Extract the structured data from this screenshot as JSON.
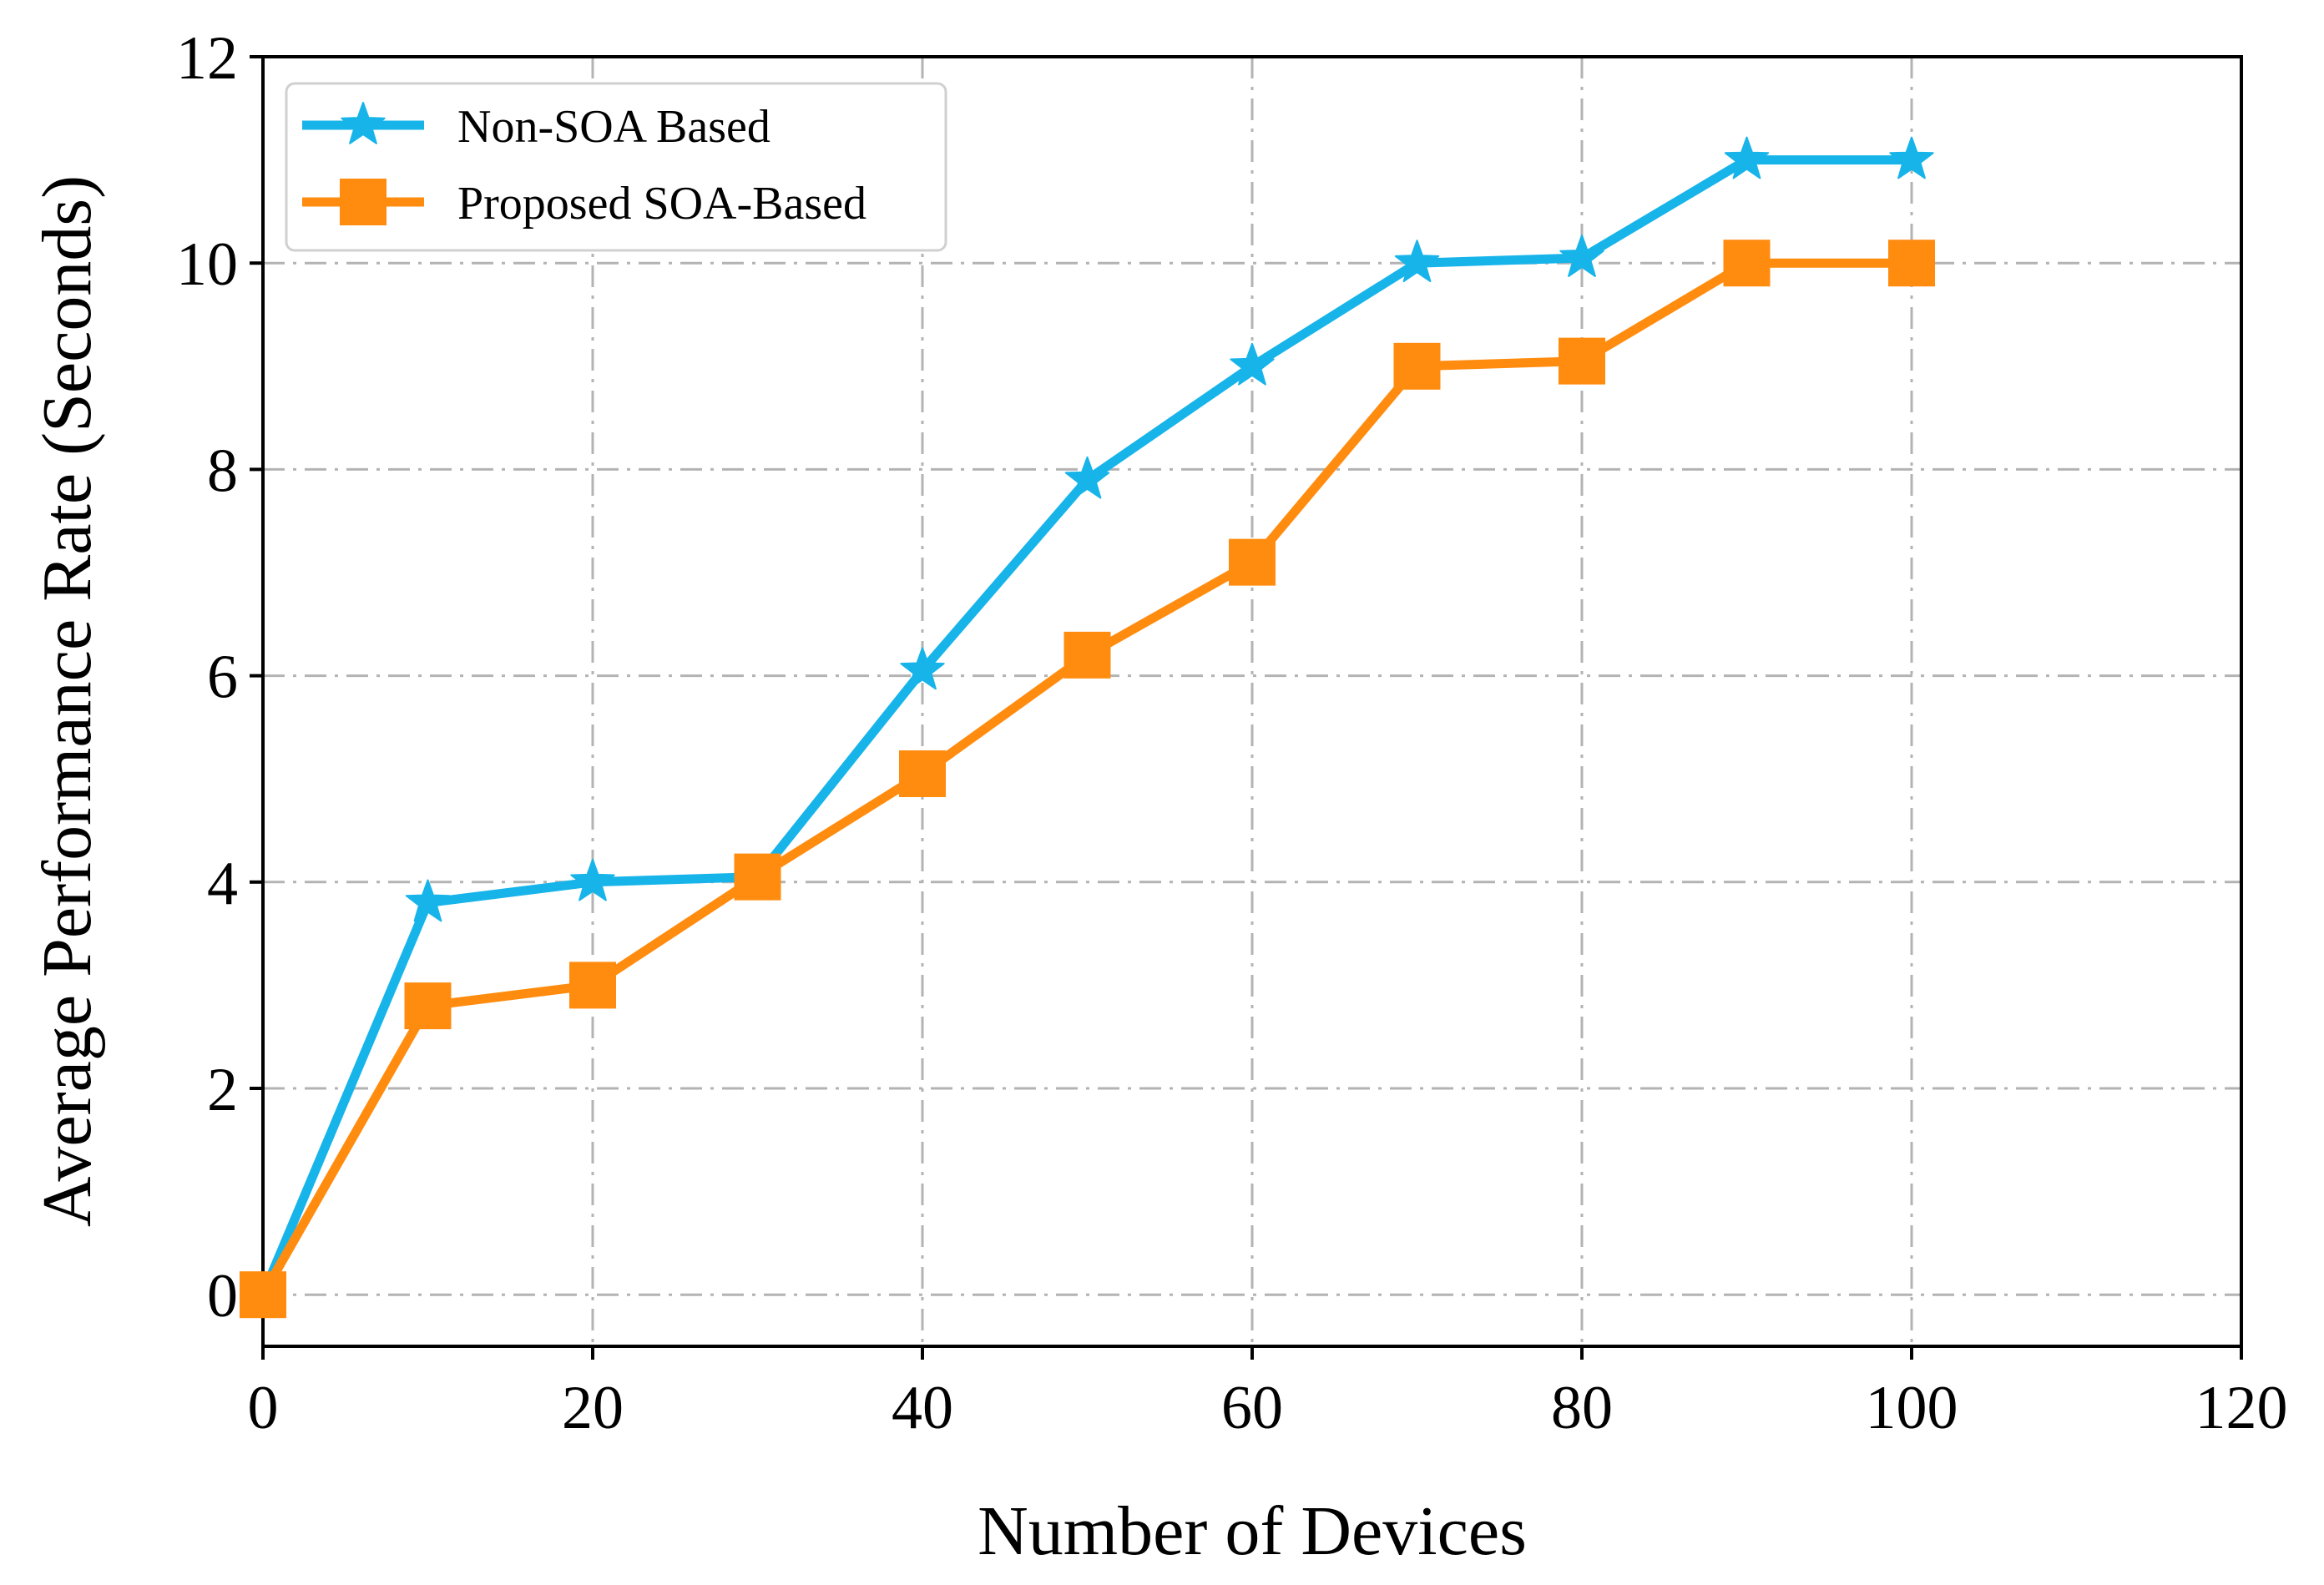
{
  "chart_data": {
    "type": "line",
    "title": "",
    "xlabel": "Number of Devices",
    "ylabel": "Average Performance Rate (Seconds)",
    "xlim": [
      0,
      120
    ],
    "ylim": [
      -0.5,
      12
    ],
    "xticks": [
      "0",
      "20",
      "40",
      "60",
      "80",
      "100",
      "120"
    ],
    "yticks": [
      "0",
      "2",
      "4",
      "6",
      "8",
      "10",
      "12"
    ],
    "xtick_values": [
      0,
      20,
      40,
      60,
      80,
      100,
      120
    ],
    "ytick_values": [
      0,
      2,
      4,
      6,
      8,
      10,
      12
    ],
    "grid": true,
    "legend_position": "top-left",
    "x": [
      0,
      10,
      20,
      30,
      40,
      50,
      60,
      70,
      80,
      90,
      100
    ],
    "series": [
      {
        "name": "Non-SOA Based",
        "marker": "star",
        "color": "#17b4ea",
        "values": [
          0.0,
          3.8,
          4.0,
          4.05,
          6.05,
          7.9,
          9.0,
          10.0,
          10.05,
          11.0,
          11.0
        ]
      },
      {
        "name": "Proposed SOA-Based",
        "marker": "square",
        "color": "#ff8c0f",
        "values": [
          0.0,
          2.8,
          3.0,
          4.05,
          5.05,
          6.2,
          7.1,
          9.0,
          9.05,
          10.0,
          10.0
        ]
      }
    ]
  }
}
